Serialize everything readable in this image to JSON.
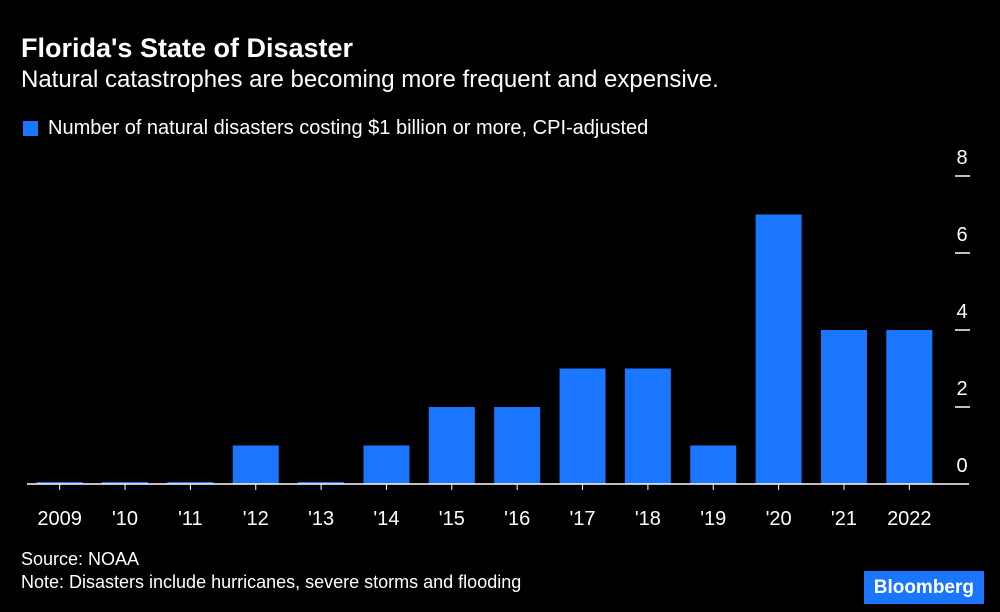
{
  "header": {
    "title": "Florida's State of Disaster",
    "subtitle": "Natural catastrophes are becoming more frequent and expensive."
  },
  "legend": {
    "label": "Number of natural disasters costing $1 billion or more, CPI-adjusted",
    "swatch_icon": "square-swatch-icon"
  },
  "chart_data": {
    "type": "bar",
    "title": "Florida's State of Disaster",
    "subtitle": "Natural catastrophes are becoming more frequent and expensive.",
    "categories": [
      "2009",
      "'10",
      "'11",
      "'12",
      "'13",
      "'14",
      "'15",
      "'16",
      "'17",
      "'18",
      "'19",
      "'20",
      "'21",
      "2022"
    ],
    "series": [
      {
        "name": "Number of natural disasters costing $1 billion or more, CPI-adjusted",
        "values": [
          0,
          0,
          0,
          1,
          0,
          1,
          2,
          2,
          3,
          3,
          1,
          7,
          4,
          4
        ],
        "color": "#1a75ff"
      }
    ],
    "yticks": [
      0,
      2,
      4,
      6,
      8
    ],
    "ylim": [
      0,
      8
    ],
    "xlabel": "",
    "ylabel": "",
    "grid": false,
    "y_axis_side": "right",
    "legend_position": "top-left"
  },
  "footer": {
    "source": "Source: NOAA",
    "note": "Note: Disasters include hurricanes, severe storms and flooding",
    "brand": "Bloomberg"
  },
  "colors": {
    "background": "#000000",
    "text": "#ffffff",
    "bar": "#1a75ff",
    "axis": "#ffffff",
    "brand_bg": "#1a75ff"
  }
}
